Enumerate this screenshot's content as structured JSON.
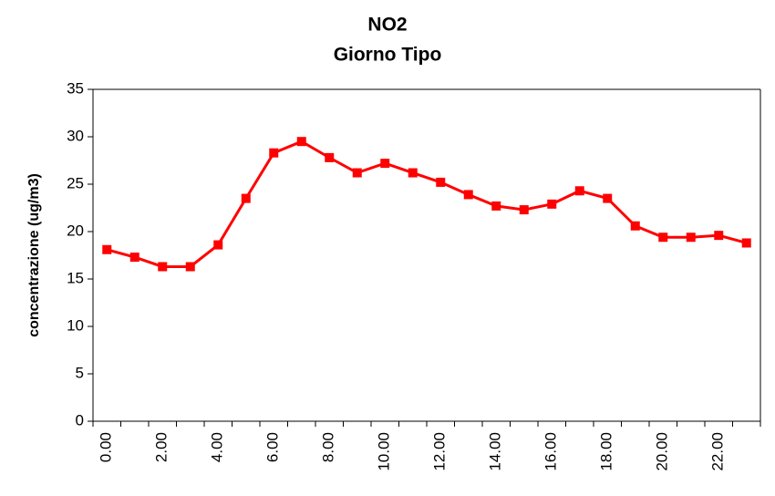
{
  "chart_data": {
    "type": "line",
    "title": "NO2",
    "subtitle": "Giorno Tipo",
    "ylabel": "concentrazione (ug/m3)",
    "categories": [
      "0.00",
      null,
      "2.00",
      null,
      "4.00",
      null,
      "6.00",
      null,
      "8.00",
      null,
      "10.00",
      null,
      "12.00",
      null,
      "14.00",
      null,
      "16.00",
      null,
      "18.00",
      null,
      "20.00",
      null,
      "22.00",
      null
    ],
    "series": [
      {
        "name": "NO2",
        "color": "#ff0000",
        "values": [
          18.1,
          17.3,
          16.3,
          16.3,
          18.6,
          23.5,
          28.3,
          29.5,
          27.8,
          26.2,
          27.2,
          26.2,
          25.2,
          23.9,
          22.7,
          22.3,
          22.9,
          24.3,
          23.5,
          20.6,
          19.4,
          19.4,
          19.6,
          18.8
        ]
      }
    ],
    "ylim": [
      0,
      35
    ],
    "yticks": [
      0,
      5,
      10,
      15,
      20,
      25,
      30,
      35
    ],
    "grid": false,
    "legend": false
  }
}
